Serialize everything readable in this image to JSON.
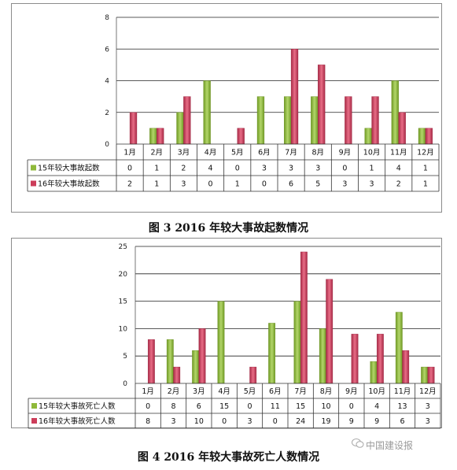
{
  "figures": [
    {
      "caption": "图 3   2016 年较大事故起数情况",
      "chart_data": {
        "type": "bar",
        "categories": [
          "1月",
          "2月",
          "3月",
          "4月",
          "5月",
          "6月",
          "7月",
          "8月",
          "9月",
          "10月",
          "11月",
          "12月"
        ],
        "series": [
          {
            "name": "15年较大事故起数",
            "values": [
              0,
              1,
              2,
              4,
              0,
              3,
              3,
              3,
              0,
              1,
              4,
              1
            ],
            "color": "#8fb93a"
          },
          {
            "name": "16年较大事故起数",
            "values": [
              2,
              1,
              3,
              0,
              1,
              0,
              6,
              5,
              3,
              3,
              2,
              1
            ],
            "color": "#cc3d5a"
          }
        ],
        "ylim": [
          0,
          8
        ],
        "yticks": [
          0,
          2,
          4,
          6,
          8
        ],
        "grid": true,
        "legend": "data-table-left"
      }
    },
    {
      "caption": "图 4   2016 年较大事故死亡人数情况",
      "chart_data": {
        "type": "bar",
        "categories": [
          "1月",
          "2月",
          "3月",
          "4月",
          "5月",
          "6月",
          "7月",
          "8月",
          "9月",
          "10月",
          "11月",
          "12月"
        ],
        "series": [
          {
            "name": "15年较大事故死亡人数",
            "values": [
              0,
              8,
              6,
              15,
              0,
              11,
              15,
              10,
              0,
              4,
              13,
              3
            ],
            "color": "#8fb93a"
          },
          {
            "name": "16年较大事故死亡人数",
            "values": [
              8,
              3,
              10,
              0,
              3,
              0,
              24,
              19,
              9,
              9,
              6,
              3
            ],
            "color": "#cc3d5a"
          }
        ],
        "ylim": [
          0,
          25
        ],
        "yticks": [
          0,
          5,
          10,
          15,
          20,
          25
        ],
        "grid": true,
        "legend": "data-table-left"
      }
    }
  ],
  "watermark": "中国建设报"
}
